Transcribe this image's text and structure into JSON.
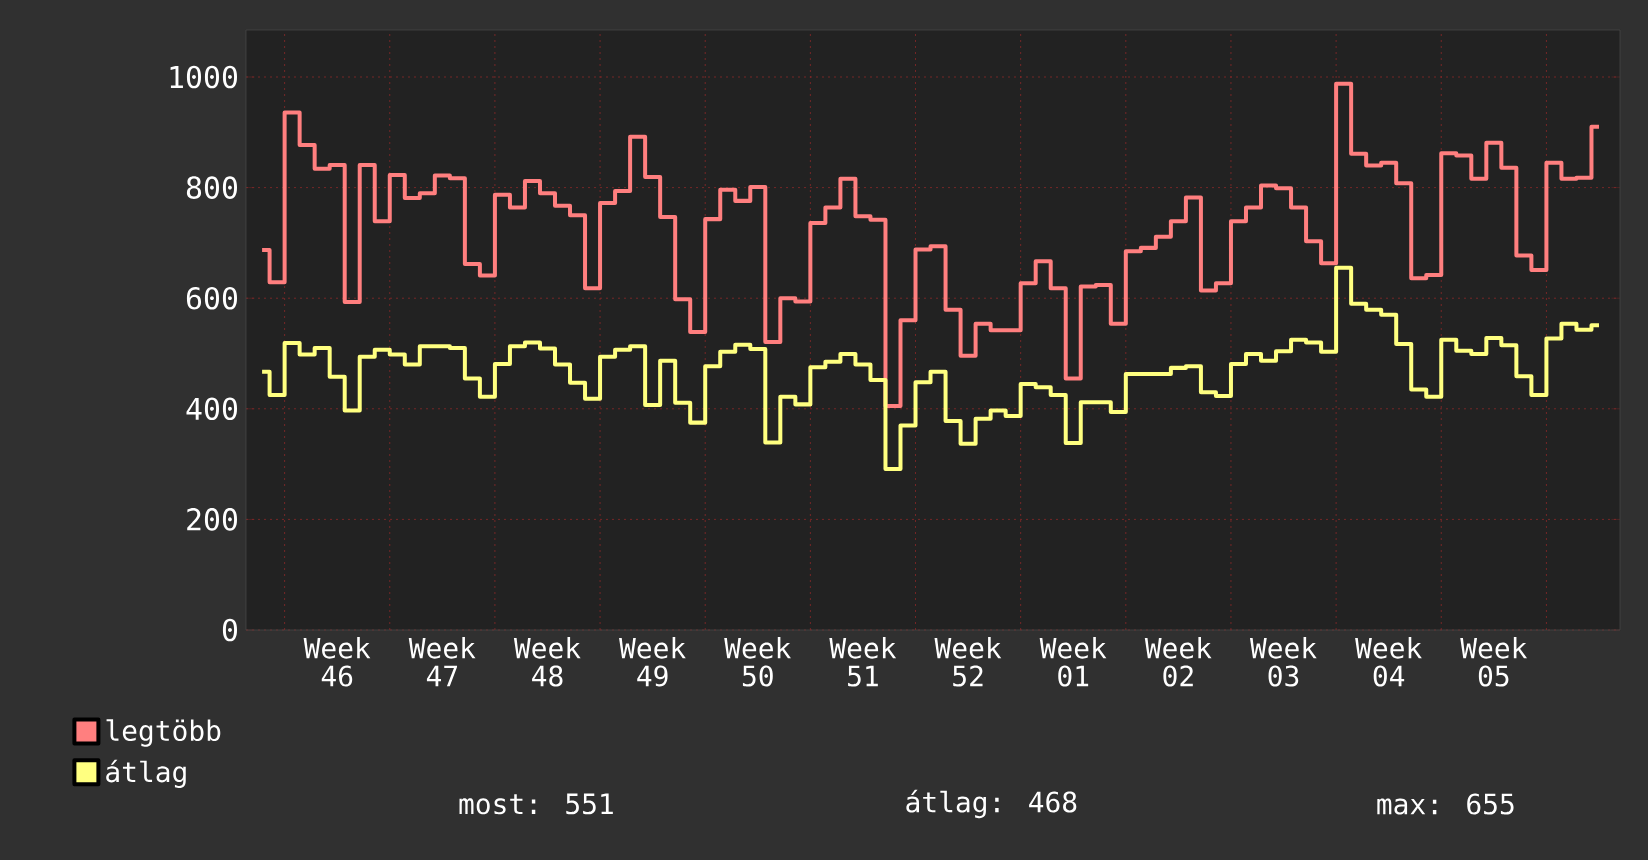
{
  "chart_data": {
    "type": "step",
    "categories": [
      null,
      null,
      null,
      null,
      null,
      "Week 46",
      null,
      null,
      null,
      null,
      null,
      null,
      "Week 47",
      null,
      null,
      null,
      null,
      null,
      null,
      "Week 48",
      null,
      null,
      null,
      null,
      null,
      null,
      "Week 49",
      null,
      null,
      null,
      null,
      null,
      null,
      "Week 50",
      null,
      null,
      null,
      null,
      null,
      null,
      "Week 51",
      null,
      null,
      null,
      null,
      null,
      null,
      "Week 52",
      null,
      null,
      null,
      null,
      null,
      null,
      "Week 01",
      null,
      null,
      null,
      null,
      null,
      null,
      "Week 02",
      null,
      null,
      null,
      null,
      null,
      null,
      "Week 03",
      null,
      null,
      null,
      null,
      null,
      null,
      "Week 04",
      null,
      null,
      null,
      null,
      null,
      null,
      "Week 05",
      null,
      null,
      null,
      null,
      null,
      null,
      null
    ],
    "series": [
      {
        "name": "legtöbb",
        "color": "#ff7f7f",
        "values": [
          687,
          629,
          936,
          877,
          834,
          841,
          593,
          841,
          739,
          823,
          781,
          790,
          822,
          817,
          662,
          641,
          787,
          764,
          812,
          790,
          767,
          750,
          618,
          772,
          794,
          892,
          819,
          747,
          598,
          539,
          743,
          796,
          776,
          801,
          521,
          600,
          594,
          736,
          764,
          816,
          748,
          742,
          405,
          560,
          688,
          694,
          579,
          496,
          554,
          542,
          542,
          627,
          667,
          618,
          455,
          621,
          624,
          554,
          685,
          691,
          711,
          739,
          782,
          614,
          627,
          739,
          764,
          804,
          799,
          764,
          703,
          663,
          988,
          861,
          840,
          845,
          808,
          636,
          642,
          862,
          858,
          816,
          881,
          836,
          677,
          651,
          845,
          816,
          818,
          910
        ]
      },
      {
        "name": "átlag",
        "color": "#ffff80",
        "values": [
          467,
          425,
          519,
          498,
          510,
          458,
          397,
          494,
          507,
          498,
          480,
          513,
          513,
          510,
          455,
          422,
          481,
          513,
          520,
          509,
          480,
          447,
          418,
          494,
          507,
          513,
          407,
          487,
          411,
          375,
          477,
          503,
          516,
          508,
          339,
          422,
          408,
          475,
          485,
          499,
          480,
          452,
          291,
          370,
          448,
          467,
          378,
          337,
          382,
          397,
          387,
          445,
          439,
          425,
          338,
          412,
          412,
          394,
          463,
          463,
          463,
          474,
          477,
          430,
          423,
          481,
          499,
          487,
          504,
          525,
          520,
          503,
          655,
          590,
          579,
          570,
          517,
          435,
          422,
          525,
          505,
          499,
          528,
          515,
          459,
          425,
          527,
          554,
          543,
          551
        ]
      }
    ],
    "ylim": [
      0,
      1085
    ],
    "yticks": [
      0,
      200,
      400,
      600,
      800,
      1000
    ],
    "grid": true,
    "legend": "bottom",
    "annotations": [
      "most: 551",
      "átlag: 468",
      "max: 655"
    ]
  }
}
